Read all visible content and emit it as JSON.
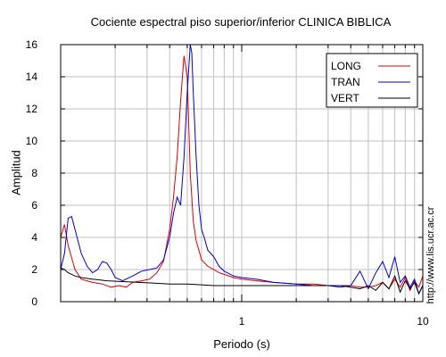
{
  "chart_data": {
    "type": "line",
    "title": "Cociente espectral piso superior/inferior  CLINICA BIBLICA",
    "xlabel": "Periodo (s)",
    "ylabel": "Amplitud",
    "xscale": "log",
    "xlim": [
      0.1,
      10
    ],
    "ylim": [
      0,
      16
    ],
    "xticks": [
      1,
      10
    ],
    "xtick_labels": [
      "1",
      "10"
    ],
    "yticks": [
      0,
      2,
      4,
      6,
      8,
      10,
      12,
      14,
      16
    ],
    "ytick_labels": [
      "0",
      "2",
      "4",
      "6",
      "8",
      "10",
      "12",
      "14",
      "16"
    ],
    "grid": true,
    "legend": "top-right",
    "series": [
      {
        "name": "LONG",
        "color": "#dd0000",
        "x": [
          0.1,
          0.105,
          0.11,
          0.12,
          0.13,
          0.15,
          0.17,
          0.19,
          0.21,
          0.23,
          0.25,
          0.28,
          0.31,
          0.34,
          0.37,
          0.4,
          0.42,
          0.44,
          0.46,
          0.48,
          0.5,
          0.52,
          0.54,
          0.56,
          0.58,
          0.6,
          0.65,
          0.7,
          0.75,
          0.8,
          0.9,
          1.0,
          1.2,
          1.5,
          2.0,
          2.5,
          3.0,
          3.5,
          4.0,
          4.5,
          5.0,
          5.5,
          6.0,
          6.5,
          7.0,
          7.5,
          8.0,
          8.5,
          9.0,
          9.5,
          10.0
        ],
        "y": [
          4.0,
          4.8,
          3.5,
          2.0,
          1.4,
          1.2,
          1.1,
          0.9,
          1.0,
          0.9,
          1.2,
          1.3,
          1.4,
          1.8,
          2.5,
          4.5,
          6.5,
          9.0,
          12.5,
          15.3,
          14.0,
          8.0,
          5.0,
          3.8,
          3.2,
          2.6,
          2.2,
          2.0,
          1.8,
          1.7,
          1.5,
          1.4,
          1.3,
          1.2,
          1.1,
          1.1,
          1.0,
          1.0,
          1.0,
          0.9,
          0.9,
          1.0,
          1.2,
          0.8,
          1.4,
          0.9,
          1.5,
          0.7,
          1.3,
          0.9,
          1.6
        ]
      },
      {
        "name": "TRAN",
        "color": "#0000cc",
        "x": [
          0.1,
          0.105,
          0.11,
          0.115,
          0.12,
          0.13,
          0.14,
          0.15,
          0.16,
          0.17,
          0.18,
          0.19,
          0.2,
          0.22,
          0.25,
          0.28,
          0.31,
          0.34,
          0.37,
          0.4,
          0.42,
          0.44,
          0.46,
          0.48,
          0.5,
          0.52,
          0.53,
          0.54,
          0.56,
          0.58,
          0.6,
          0.62,
          0.65,
          0.7,
          0.75,
          0.8,
          0.9,
          1.0,
          1.2,
          1.5,
          2.0,
          2.5,
          3.0,
          3.5,
          4.0,
          4.5,
          5.0,
          5.5,
          6.0,
          6.5,
          7.0,
          7.5,
          8.0,
          8.5,
          9.0,
          9.5,
          10.0
        ],
        "y": [
          2.0,
          3.0,
          5.2,
          5.3,
          4.5,
          3.0,
          2.2,
          1.8,
          2.0,
          2.5,
          2.4,
          2.0,
          1.5,
          1.3,
          1.6,
          1.9,
          2.0,
          2.1,
          2.6,
          4.0,
          5.5,
          6.5,
          6.0,
          9.0,
          13.0,
          16.0,
          15.5,
          13.0,
          9.0,
          6.0,
          4.5,
          4.0,
          3.2,
          2.8,
          2.2,
          1.9,
          1.6,
          1.5,
          1.4,
          1.2,
          1.1,
          1.0,
          1.0,
          0.9,
          1.0,
          1.9,
          0.8,
          1.8,
          2.5,
          1.5,
          2.8,
          1.2,
          1.6,
          0.9,
          1.4,
          0.5,
          1.0
        ]
      },
      {
        "name": "VERT",
        "color": "#000000",
        "x": [
          0.1,
          0.105,
          0.11,
          0.12,
          0.13,
          0.15,
          0.18,
          0.22,
          0.27,
          0.33,
          0.4,
          0.5,
          0.6,
          0.7,
          0.8,
          0.9,
          1.0,
          1.2,
          1.5,
          2.0,
          2.5,
          3.0,
          3.5,
          4.0,
          4.5,
          5.0,
          5.5,
          6.0,
          6.5,
          7.0,
          7.5,
          8.0,
          8.5,
          9.0,
          9.5,
          10.0
        ],
        "y": [
          2.1,
          2.0,
          1.8,
          1.6,
          1.5,
          1.4,
          1.3,
          1.25,
          1.2,
          1.15,
          1.1,
          1.1,
          1.05,
          1.0,
          1.0,
          1.0,
          1.0,
          1.0,
          1.0,
          1.0,
          1.0,
          1.0,
          1.0,
          0.9,
          0.8,
          1.0,
          0.7,
          1.2,
          0.8,
          1.6,
          0.6,
          1.3,
          0.8,
          1.2,
          0.5,
          1.0
        ]
      }
    ]
  },
  "watermark_url": "http://www.lis.ucr.ac.cr"
}
